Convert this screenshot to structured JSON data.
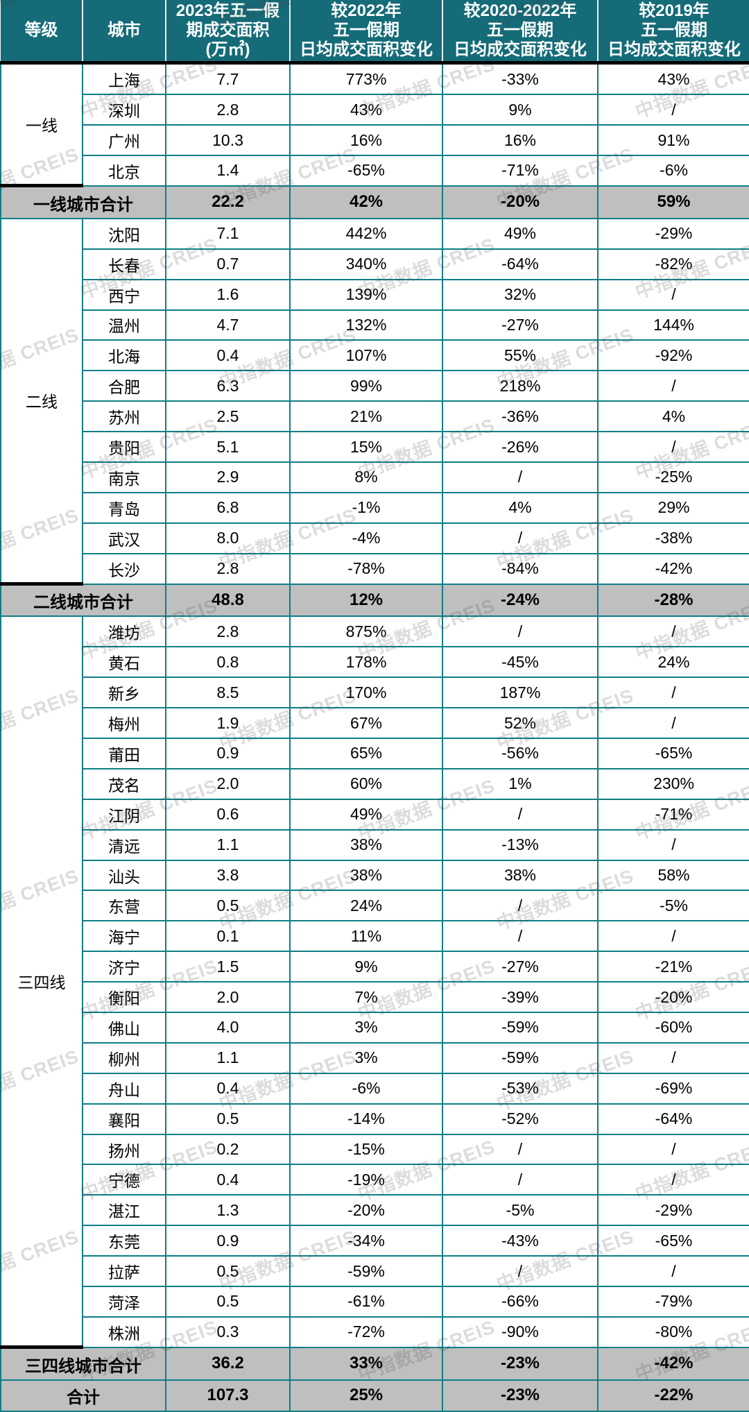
{
  "colors": {
    "header_bg": "#156b78",
    "header_text": "#ffffff",
    "border_teal": "#0d7e86",
    "subtotal_bg": "#bfbfbf",
    "section_divider": "#000000",
    "body_text": "#000000"
  },
  "watermark": {
    "text": "中指数据 CREIS"
  },
  "chart_data": {
    "type": "table",
    "columns": [
      "等级",
      "城市",
      "2023年五一假\n期成交面积\n(万㎡)",
      "较2022年\n五一假期\n日均成交面积变化",
      "较2020-2022年\n五一假期\n日均成交面积变化",
      "较2019年\n五一假期\n日均成交面积变化"
    ],
    "sections": [
      {
        "tier": "一线",
        "rows": [
          [
            "上海",
            "7.7",
            "773%",
            "-33%",
            "43%"
          ],
          [
            "深圳",
            "2.8",
            "43%",
            "9%",
            "/"
          ],
          [
            "广州",
            "10.3",
            "16%",
            "16%",
            "91%"
          ],
          [
            "北京",
            "1.4",
            "-65%",
            "-71%",
            "-6%"
          ]
        ],
        "subtotal": [
          "一线城市合计",
          "22.2",
          "42%",
          "-20%",
          "59%"
        ]
      },
      {
        "tier": "二线",
        "rows": [
          [
            "沈阳",
            "7.1",
            "442%",
            "49%",
            "-29%"
          ],
          [
            "长春",
            "0.7",
            "340%",
            "-64%",
            "-82%"
          ],
          [
            "西宁",
            "1.6",
            "139%",
            "32%",
            "/"
          ],
          [
            "温州",
            "4.7",
            "132%",
            "-27%",
            "144%"
          ],
          [
            "北海",
            "0.4",
            "107%",
            "55%",
            "-92%"
          ],
          [
            "合肥",
            "6.3",
            "99%",
            "218%",
            "/"
          ],
          [
            "苏州",
            "2.5",
            "21%",
            "-36%",
            "4%"
          ],
          [
            "贵阳",
            "5.1",
            "15%",
            "-26%",
            "/"
          ],
          [
            "南京",
            "2.9",
            "8%",
            "/",
            "-25%"
          ],
          [
            "青岛",
            "6.8",
            "-1%",
            "4%",
            "29%"
          ],
          [
            "武汉",
            "8.0",
            "-4%",
            "/",
            "-38%"
          ],
          [
            "长沙",
            "2.8",
            "-78%",
            "-84%",
            "-42%"
          ]
        ],
        "subtotal": [
          "二线城市合计",
          "48.8",
          "12%",
          "-24%",
          "-28%"
        ]
      },
      {
        "tier": "三四线",
        "rows": [
          [
            "潍坊",
            "2.8",
            "875%",
            "/",
            "/"
          ],
          [
            "黄石",
            "0.8",
            "178%",
            "-45%",
            "24%"
          ],
          [
            "新乡",
            "8.5",
            "170%",
            "187%",
            "/"
          ],
          [
            "梅州",
            "1.9",
            "67%",
            "52%",
            "/"
          ],
          [
            "莆田",
            "0.9",
            "65%",
            "-56%",
            "-65%"
          ],
          [
            "茂名",
            "2.0",
            "60%",
            "1%",
            "230%"
          ],
          [
            "江阴",
            "0.6",
            "49%",
            "/",
            "-71%"
          ],
          [
            "清远",
            "1.1",
            "38%",
            "-13%",
            "/"
          ],
          [
            "汕头",
            "3.8",
            "38%",
            "38%",
            "58%"
          ],
          [
            "东营",
            "0.5",
            "24%",
            "/",
            "-5%"
          ],
          [
            "海宁",
            "0.1",
            "11%",
            "/",
            "/"
          ],
          [
            "济宁",
            "1.5",
            "9%",
            "-27%",
            "-21%"
          ],
          [
            "衡阳",
            "2.0",
            "7%",
            "-39%",
            "-20%"
          ],
          [
            "佛山",
            "4.0",
            "3%",
            "-59%",
            "-60%"
          ],
          [
            "柳州",
            "1.1",
            "3%",
            "-59%",
            "/"
          ],
          [
            "舟山",
            "0.4",
            "-6%",
            "-53%",
            "-69%"
          ],
          [
            "襄阳",
            "0.5",
            "-14%",
            "-52%",
            "-64%"
          ],
          [
            "扬州",
            "0.2",
            "-15%",
            "/",
            "/"
          ],
          [
            "宁德",
            "0.4",
            "-19%",
            "/",
            "/"
          ],
          [
            "湛江",
            "1.3",
            "-20%",
            "-5%",
            "-29%"
          ],
          [
            "东莞",
            "0.9",
            "-34%",
            "-43%",
            "-65%"
          ],
          [
            "拉萨",
            "0.5",
            "-59%",
            "/",
            "/"
          ],
          [
            "菏泽",
            "0.5",
            "-61%",
            "-66%",
            "-79%"
          ],
          [
            "株洲",
            "0.3",
            "-72%",
            "-90%",
            "-80%"
          ]
        ],
        "subtotal": [
          "三四线城市合计",
          "36.2",
          "33%",
          "-23%",
          "-42%"
        ]
      }
    ],
    "grand_total": [
      "合计",
      "107.3",
      "25%",
      "-23%",
      "-22%"
    ]
  }
}
